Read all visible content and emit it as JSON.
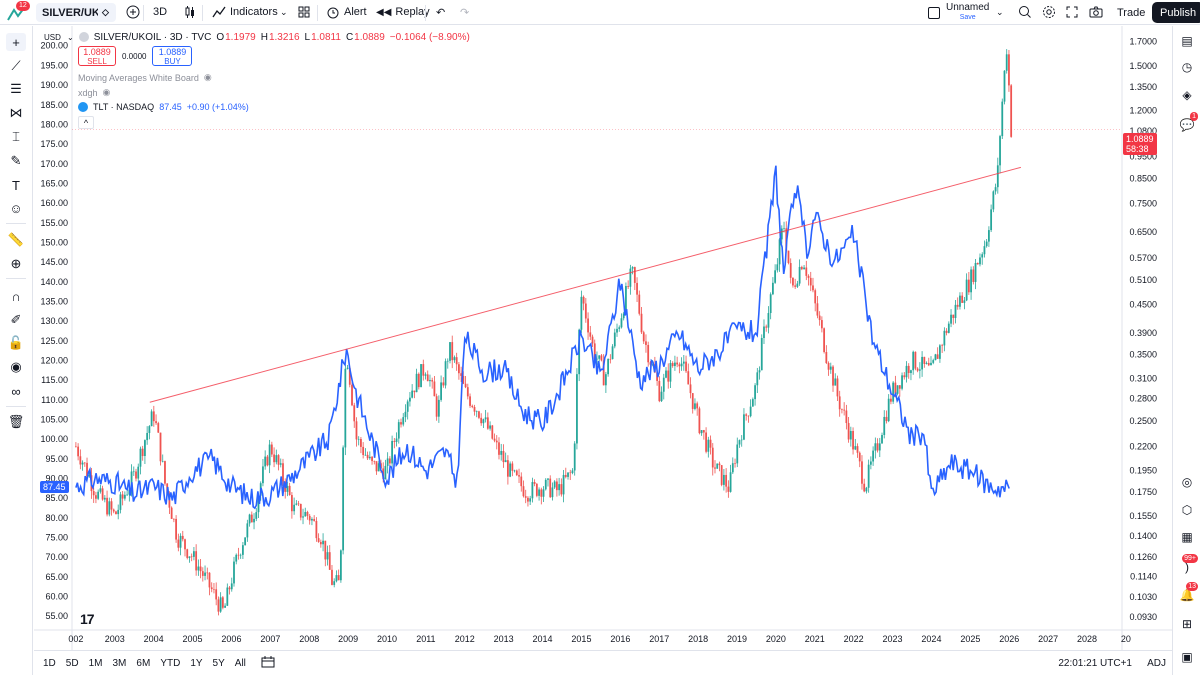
{
  "topbar": {
    "notification_count": "12",
    "symbol": "SILVER/UKOIL",
    "interval": "3D",
    "indicators_label": "Indicators",
    "alert_label": "Alert",
    "replay_label": "Replay",
    "layout_name": "Unnamed",
    "layout_status": "Save",
    "trade_label": "Trade",
    "publish_label": "Publish"
  },
  "legend": {
    "title": "SILVER/UKOIL · 3D · TVC",
    "open_label": "O",
    "open": "1.1979",
    "high_label": "H",
    "high": "1.3216",
    "low_label": "L",
    "low": "1.0811",
    "close_label": "C",
    "close": "1.0889",
    "change": "−0.1064 (−8.90%)",
    "sell_price": "1.0889",
    "sell_label": "SELL",
    "spread": "0.0000",
    "buy_price": "1.0889",
    "buy_label": "BUY",
    "study1": "Moving Averages White Board",
    "study2": "xdgh",
    "compare_symbol": "TLT · NASDAQ",
    "compare_value": "87.45",
    "compare_change": "+0.90 (+1.04%)"
  },
  "currency": "USD",
  "right_axis": {
    "ticks": [
      "1.7000",
      "1.5000",
      "1.3500",
      "1.2000",
      "1.0800",
      "0.9500",
      "0.8500",
      "0.7500",
      "0.6500",
      "0.5700",
      "0.5100",
      "0.4500",
      "0.3900",
      "0.3500",
      "0.3100",
      "0.2800",
      "0.2500",
      "0.2200",
      "0.1950",
      "0.1750",
      "0.1550",
      "0.1400",
      "0.1260",
      "0.1140",
      "0.1030",
      "0.0930"
    ],
    "last_price": "1.0889",
    "countdown": "58:38"
  },
  "left_axis": {
    "ticks": [
      "200.00",
      "195.00",
      "190.00",
      "185.00",
      "180.00",
      "175.00",
      "170.00",
      "165.00",
      "160.00",
      "155.00",
      "150.00",
      "145.00",
      "140.00",
      "135.00",
      "130.00",
      "125.00",
      "120.00",
      "115.00",
      "110.00",
      "105.00",
      "100.00",
      "95.00",
      "90.00",
      "85.00",
      "80.00",
      "75.00",
      "70.00",
      "65.00",
      "60.00",
      "55.00"
    ],
    "last_price": "87.45"
  },
  "time_axis": [
    "002",
    "2003",
    "2004",
    "2005",
    "2006",
    "2007",
    "2008",
    "2009",
    "2010",
    "2011",
    "2012",
    "2013",
    "2014",
    "2015",
    "2016",
    "2017",
    "2018",
    "2019",
    "2020",
    "2021",
    "2022",
    "2023",
    "2024",
    "2025",
    "2026",
    "2027",
    "2028",
    "20"
  ],
  "bottombar": {
    "ranges": [
      "1D",
      "5D",
      "1M",
      "3M",
      "6M",
      "YTD",
      "1Y",
      "5Y",
      "All"
    ],
    "clock": "22:01:21 UTC+1",
    "adj_label": "ADJ"
  },
  "rightbar": {
    "alerts_badge": "1",
    "news_badge": "99+",
    "notif_badge": "13"
  },
  "colors": {
    "up": "#26a69a",
    "down": "#ef5350",
    "compare_line": "#2962ff",
    "trendline": "#f23645"
  },
  "chart_data": {
    "type": "line",
    "title": "SILVER/UKOIL · 3D · TVC vs TLT · NASDAQ",
    "x_unit": "year",
    "series": [
      {
        "name": "SILVER/UKOIL",
        "axis": "right",
        "x": [
          2002.0,
          2002.5,
          2003.0,
          2003.5,
          2004.0,
          2004.3,
          2004.6,
          2005.0,
          2005.4,
          2005.8,
          2006.2,
          2006.6,
          2007.0,
          2007.3,
          2007.6,
          2008.0,
          2008.3,
          2008.6,
          2008.8,
          2008.95,
          2009.2,
          2009.6,
          2010.0,
          2010.5,
          2011.0,
          2011.3,
          2011.6,
          2012.0,
          2012.4,
          2012.8,
          2013.2,
          2013.6,
          2014.0,
          2014.4,
          2014.8,
          2015.0,
          2015.3,
          2015.6,
          2016.0,
          2016.3,
          2016.6,
          2017.0,
          2017.5,
          2018.0,
          2018.4,
          2018.8,
          2019.0,
          2019.5,
          2020.0,
          2020.2,
          2020.4,
          2020.7,
          2021.0,
          2021.3,
          2021.6,
          2022.0,
          2022.3,
          2022.6,
          2023.0,
          2023.5,
          2024.0,
          2024.5,
          2025.0,
          2025.4,
          2025.7,
          2025.85,
          2025.95,
          2026.0,
          2026.05
        ],
        "y": [
          0.22,
          0.175,
          0.155,
          0.19,
          0.26,
          0.18,
          0.14,
          0.126,
          0.11,
          0.095,
          0.13,
          0.16,
          0.22,
          0.19,
          0.16,
          0.155,
          0.14,
          0.11,
          0.11,
          0.36,
          0.23,
          0.2,
          0.195,
          0.28,
          0.33,
          0.26,
          0.36,
          0.29,
          0.26,
          0.22,
          0.19,
          0.175,
          0.18,
          0.176,
          0.195,
          0.47,
          0.36,
          0.31,
          0.42,
          0.53,
          0.38,
          0.29,
          0.35,
          0.25,
          0.2,
          0.178,
          0.22,
          0.3,
          0.53,
          0.68,
          0.48,
          0.57,
          0.45,
          0.35,
          0.28,
          0.22,
          0.18,
          0.22,
          0.29,
          0.34,
          0.32,
          0.42,
          0.51,
          0.62,
          0.86,
          1.35,
          1.7,
          1.3,
          1.0889
        ]
      },
      {
        "name": "TLT · NASDAQ",
        "axis": "left",
        "x": [
          2002.0,
          2002.5,
          2003.0,
          2003.5,
          2004.0,
          2004.5,
          2005.0,
          2005.5,
          2006.0,
          2006.5,
          2007.0,
          2007.5,
          2008.0,
          2008.5,
          2008.95,
          2009.2,
          2009.6,
          2010.0,
          2010.5,
          2011.0,
          2011.5,
          2011.8,
          2012.0,
          2012.5,
          2013.0,
          2013.5,
          2014.0,
          2014.5,
          2015.0,
          2015.5,
          2016.0,
          2016.5,
          2017.0,
          2017.5,
          2018.0,
          2018.5,
          2019.0,
          2019.5,
          2020.0,
          2020.2,
          2020.5,
          2020.8,
          2021.0,
          2021.5,
          2022.0,
          2022.5,
          2023.0,
          2023.5,
          2023.8,
          2024.0,
          2024.5,
          2025.0,
          2025.5,
          2026.0
        ],
        "y": [
          88,
          90,
          89,
          86,
          88,
          85,
          92,
          95,
          88,
          85,
          86,
          90,
          95,
          100,
          123,
          112,
          100,
          90,
          98,
          92,
          97,
          89,
          126,
          117,
          118,
          107,
          104,
          114,
          126,
          116,
          140,
          115,
          119,
          127,
          118,
          122,
          128,
          127,
          168,
          142,
          165,
          148,
          157,
          145,
          152,
          125,
          112,
          100,
          102,
          86,
          94,
          92,
          88,
          87.45
        ]
      }
    ],
    "trendline": {
      "x": [
        2003.9,
        2026.3
      ],
      "y_right": [
        0.275,
        0.9
      ]
    },
    "right_ylim": [
      0.088,
      1.8
    ],
    "left_ylim": [
      52,
      204
    ],
    "xlim": [
      2001.9,
      2028.9
    ]
  }
}
